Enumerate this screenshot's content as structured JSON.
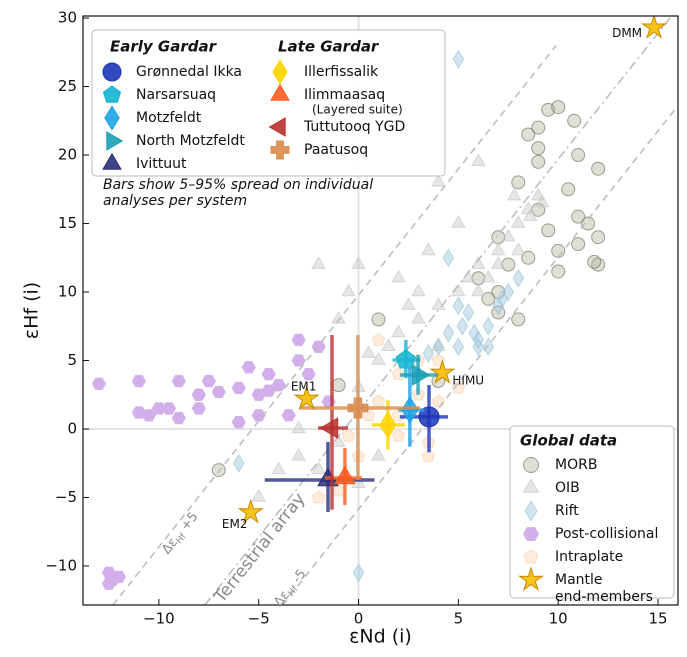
{
  "chart_data": {
    "type": "scatter",
    "x_label": "εNd (i)",
    "y_label": "εHf (i)",
    "xlim": [
      -13.8,
      16
    ],
    "ylim": [
      -12.85,
      30.15
    ],
    "xticks": [
      {
        "value": -10,
        "label": "−10"
      },
      {
        "value": -5,
        "label": "−5"
      },
      0,
      5,
      10,
      15
    ],
    "yticks": [
      {
        "value": -10,
        "label": "−10"
      },
      {
        "value": -5,
        "label": "−5"
      },
      0,
      5,
      10,
      15,
      20,
      25,
      30
    ],
    "note": [
      "Bars show 5–95% spread on individual",
      "analyses per system"
    ],
    "reference_lines": [
      {
        "x": [
          -12.3,
          9.9
        ],
        "y": [
          -12.85,
          28.0
        ],
        "style": "dashed",
        "label": {
          "prefix": "Δε",
          "sub": "Hf",
          "suffix": " +5"
        }
      },
      {
        "x": [
          -7.7,
          15.6
        ],
        "y": [
          -12.85,
          30.0
        ],
        "style": "dashdot",
        "label": {
          "prefix": "Terrestrial array"
        }
      },
      {
        "x": [
          -3.8,
          16
        ],
        "y": [
          -12.85,
          23.6
        ],
        "style": "dashed",
        "label": {
          "prefix": "Δε",
          "sub": "Hf",
          "suffix": " -5"
        }
      }
    ],
    "groups": [
      {
        "title": "Global data",
        "series": [
          {
            "name": "MORB",
            "marker": "circle",
            "color": "#b8b8a4",
            "x": [
              9.5,
              10,
              9,
              8.5,
              11,
              9,
              12,
              10.5,
              11,
              11.5,
              12,
              12,
              11.8,
              8,
              7,
              9.5,
              8.5,
              6,
              7,
              8,
              10,
              9,
              10,
              7.5,
              11,
              -1,
              1,
              -7,
              7,
              6.5,
              4,
              9,
              10.8
            ],
            "values": [
              23.3,
              23.5,
              22,
              21.5,
              20,
              19.5,
              19,
              17.5,
              15.5,
              15,
              14,
              12,
              12.2,
              18,
              14,
              14.5,
              12.5,
              11,
              10,
              8,
              13,
              16,
              11.5,
              12,
              13.5,
              3.2,
              8,
              -3,
              8.5,
              9.5,
              3.5,
              20.5,
              22.5
            ]
          },
          {
            "name": "OIB",
            "marker": "tri-up",
            "color": "#c8c8c8",
            "x": [
              -5,
              -3,
              -2,
              -1,
              0,
              1,
              1.5,
              2,
              3,
              4,
              5,
              5.5,
              6,
              7,
              7.5,
              8,
              8.5,
              9,
              2,
              0,
              -2,
              -0.5,
              -1,
              2.5,
              3,
              6,
              6.5,
              7,
              8,
              8.6,
              4,
              6,
              5,
              3.5,
              -4,
              -3,
              1,
              0,
              0.5,
              3,
              4,
              7.8,
              9.2
            ],
            "values": [
              -5,
              -2,
              -3,
              -1,
              3,
              5,
              6,
              7,
              8,
              9,
              10,
              11,
              12,
              13,
              14,
              15,
              16,
              17,
              11,
              12,
              12,
              10,
              8,
              9,
              10,
              10,
              11,
              12,
              13,
              15.5,
              18,
              19.5,
              15,
              13,
              -3,
              0,
              -2,
              -4,
              5.5,
              4,
              6,
              17,
              16.5
            ]
          },
          {
            "name": "Rift",
            "marker": "diamond",
            "color": "#9cc6dc",
            "x": [
              5,
              5,
              5.5,
              5.8,
              6,
              4.5,
              4,
              3.5,
              6.5,
              7,
              7.5,
              8,
              5,
              6,
              3,
              -6,
              0,
              4.5,
              6.5,
              5.2,
              7.2
            ],
            "values": [
              27,
              9,
              8.5,
              7,
              6.5,
              7,
              6,
              5.5,
              7.5,
              9,
              10,
              11,
              6,
              6,
              4,
              -2.5,
              -10.5,
              12.5,
              6,
              7.5,
              9.5
            ]
          },
          {
            "name": "Post-collisional",
            "marker": "hexagon",
            "color": "#d2aeea",
            "hollow": true,
            "x": [
              -13,
              -12.5,
              -12.3,
              -12.5,
              -12,
              -11,
              -10.5,
              -10,
              -9.5,
              -9,
              -8,
              -7,
              -6,
              -5.5,
              -5,
              -4.5,
              -4,
              -4.5,
              -3,
              -3,
              -2,
              -2.5,
              -3.5,
              -5,
              -6,
              -9,
              -8,
              -1.5,
              -11,
              -7.5
            ],
            "values": [
              3.3,
              -10.5,
              -11,
              -11.3,
              -10.8,
              3.5,
              1,
              1.5,
              1.5,
              0.8,
              2.5,
              2.7,
              3,
              4.5,
              2.5,
              2.8,
              3.2,
              4,
              5,
              6.5,
              6,
              4,
              1,
              1,
              0.5,
              3.5,
              1.5,
              2,
              1.2,
              3.5
            ]
          },
          {
            "name": "Intraplate",
            "marker": "pentagon",
            "color": "#fbd2b0",
            "x": [
              1,
              3,
              2,
              4,
              3.5,
              3.5,
              0,
              -1,
              -2,
              1,
              2,
              4,
              0.5,
              -0.5,
              5,
              2,
              3
            ],
            "values": [
              6.5,
              5,
              4,
              2,
              -1,
              -2,
              -2,
              -4.5,
              -5,
              2,
              1,
              5,
              1,
              -0.5,
              3,
              -0.5,
              2.5
            ]
          },
          {
            "name": "Mantle end-members",
            "marker": "star",
            "color": "#f7c21a",
            "x": [
              14.8,
              4.2,
              -2.6,
              -5.4
            ],
            "values": [
              29.3,
              4.1,
              2.2,
              -6.1
            ],
            "point_labels": [
              "DMM",
              "HIMU",
              "EM1",
              "EM2"
            ]
          }
        ]
      },
      {
        "title": "Early Gardar",
        "series": [
          {
            "name": "Grønnedal Ikka",
            "marker": "circle",
            "color": "#1b36b8",
            "x": [
              3.53
            ],
            "values": [
              0.88
            ],
            "x_range": [
              2.07,
              4.48
            ],
            "y_range": [
              -1.7,
              3.2
            ]
          },
          {
            "name": "Narsarsuaq",
            "marker": "pentagon",
            "color": "#14b4d2",
            "x": [
              2.37
            ],
            "values": [
              5.04
            ],
            "x_range": [
              1.7,
              3.1
            ],
            "y_range": [
              3.7,
              6.5
            ]
          },
          {
            "name": "Motzfeldt",
            "marker": "diamond",
            "color": "#1ea3e6",
            "x": [
              2.57
            ],
            "values": [
              1.39
            ],
            "x_range": [
              2.0,
              3.3
            ],
            "y_range": [
              -1.3,
              4.45
            ]
          },
          {
            "name": "North Motzfeldt",
            "marker": "tri-right",
            "color": "#1aa0b4",
            "x": [
              2.98
            ],
            "values": [
              3.94
            ],
            "x_range": [
              2.07,
              3.98
            ],
            "y_range": [
              2.5,
              5.4
            ]
          },
          {
            "name": "Ivittuut",
            "marker": "tri-up",
            "color": "#2b2f78",
            "x": [
              -1.53
            ],
            "values": [
              -3.72
            ],
            "x_range": [
              -4.7,
              0.8
            ],
            "y_range": [
              -6.06,
              -0.95
            ]
          }
        ]
      },
      {
        "title": "Late Gardar",
        "series": [
          {
            "name": "Illerfissalik",
            "marker": "diamond",
            "color": "#ffd400",
            "x": [
              1.47
            ],
            "values": [
              0.29
            ],
            "x_range": [
              0.67,
              2.32
            ],
            "y_range": [
              -1.5,
              2.1
            ]
          },
          {
            "name": "Ilimmaasaq",
            "name_note": "(Layered suite)",
            "marker": "tri-up",
            "color": "#ff5b1e",
            "x": [
              -0.68
            ],
            "values": [
              -3.58
            ],
            "x_range": [
              -1.68,
              0.17
            ],
            "y_range": [
              -5.55,
              -1.39
            ]
          },
          {
            "name": "Tuttutooq YGD",
            "marker": "tri-left",
            "color": "#b8302e",
            "x": [
              -1.33
            ],
            "values": [
              0.07
            ],
            "x_range": [
              -2.03,
              -0.53
            ],
            "y_range": [
              -5.9,
              6.86
            ]
          },
          {
            "name": "Paatusoq",
            "marker": "plus",
            "color": "#d88c4e",
            "x": [
              -0.03
            ],
            "values": [
              1.53
            ],
            "x_range": [
              -2.94,
              3.08
            ],
            "y_range": [
              -3.72,
              6.86
            ]
          }
        ]
      }
    ]
  }
}
